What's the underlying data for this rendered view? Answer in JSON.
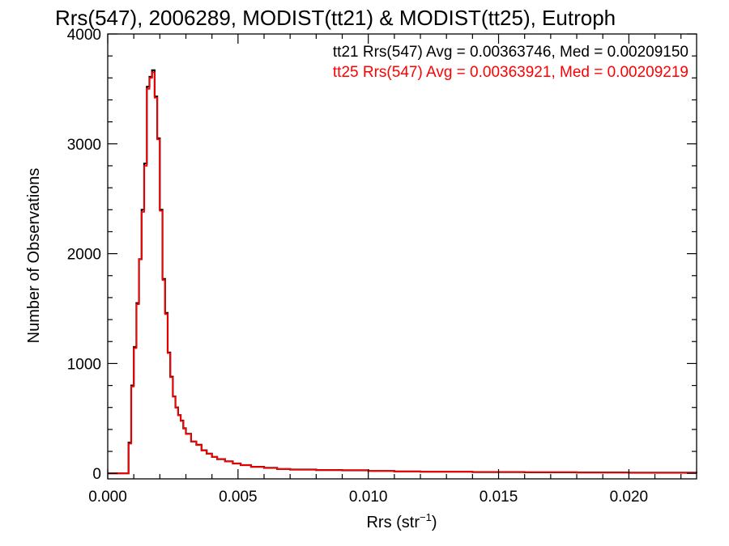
{
  "chart_data": {
    "type": "histogram-step",
    "title": "Rrs(547), 2006289, MODIST(tt21) & MODIST(tt25), Eutroph",
    "xlabel_prefix": "Rrs (str",
    "xlabel_sup": "−1",
    "xlabel_suffix": ")",
    "ylabel": "Number of Observations",
    "xlim": [
      0.0,
      0.0226
    ],
    "ylim": [
      -50,
      4000
    ],
    "x_ticks": [
      {
        "value": 0.0,
        "label": "0.000"
      },
      {
        "value": 0.005,
        "label": "0.005"
      },
      {
        "value": 0.01,
        "label": "0.010"
      },
      {
        "value": 0.015,
        "label": "0.015"
      },
      {
        "value": 0.02,
        "label": "0.020"
      }
    ],
    "y_ticks": [
      {
        "value": 0,
        "label": "0"
      },
      {
        "value": 1000,
        "label": "1000"
      },
      {
        "value": 2000,
        "label": "2000"
      },
      {
        "value": 3000,
        "label": "3000"
      },
      {
        "value": 4000,
        "label": "4000"
      }
    ],
    "annotations": [
      {
        "text": "tt21 Rrs(547) Avg = 0.00363746, Med = 0.00209150",
        "color": "#000000"
      },
      {
        "text": "tt25 Rrs(547) Avg = 0.00363921, Med = 0.00209219",
        "color": "#ff0000"
      }
    ],
    "series": [
      {
        "name": "tt21",
        "color": "#000000",
        "x": [
          0.0,
          0.0008,
          0.0009,
          0.001,
          0.0011,
          0.0012,
          0.0013,
          0.0014,
          0.0015,
          0.0016,
          0.0017,
          0.0018,
          0.0019,
          0.002,
          0.0021,
          0.0022,
          0.0023,
          0.0024,
          0.0025,
          0.0026,
          0.0027,
          0.0028,
          0.0029,
          0.003,
          0.0032,
          0.0034,
          0.0036,
          0.0038,
          0.004,
          0.0042,
          0.0045,
          0.0048,
          0.0051,
          0.0055,
          0.006,
          0.0065,
          0.007,
          0.008,
          0.009,
          0.01,
          0.011,
          0.012,
          0.014,
          0.016,
          0.018,
          0.02,
          0.0226
        ],
        "y": [
          0,
          280,
          800,
          1150,
          1550,
          1950,
          2400,
          2820,
          3520,
          3610,
          3670,
          3430,
          3050,
          2400,
          1770,
          1460,
          1100,
          880,
          700,
          600,
          530,
          480,
          410,
          360,
          290,
          260,
          210,
          180,
          150,
          130,
          110,
          90,
          75,
          60,
          50,
          40,
          35,
          30,
          28,
          22,
          18,
          15,
          12,
          10,
          8,
          6,
          5
        ]
      },
      {
        "name": "tt25",
        "color": "#ff0000",
        "x": [
          0.0,
          0.0008,
          0.0009,
          0.001,
          0.0011,
          0.0012,
          0.0013,
          0.0014,
          0.0015,
          0.0016,
          0.0017,
          0.0018,
          0.0019,
          0.002,
          0.0021,
          0.0022,
          0.0023,
          0.0024,
          0.0025,
          0.0026,
          0.0027,
          0.0028,
          0.0029,
          0.003,
          0.0032,
          0.0034,
          0.0036,
          0.0038,
          0.004,
          0.0042,
          0.0045,
          0.0048,
          0.0051,
          0.0055,
          0.006,
          0.0065,
          0.007,
          0.008,
          0.009,
          0.01,
          0.011,
          0.012,
          0.014,
          0.016,
          0.018,
          0.02,
          0.0226
        ],
        "y": [
          0,
          270,
          790,
          1140,
          1540,
          1950,
          2380,
          2800,
          3500,
          3600,
          3650,
          3420,
          3040,
          2390,
          1760,
          1450,
          1095,
          875,
          700,
          598,
          528,
          478,
          408,
          358,
          290,
          258,
          208,
          178,
          150,
          130,
          110,
          90,
          75,
          60,
          50,
          40,
          35,
          30,
          28,
          22,
          18,
          15,
          12,
          10,
          8,
          6,
          5
        ]
      }
    ]
  }
}
